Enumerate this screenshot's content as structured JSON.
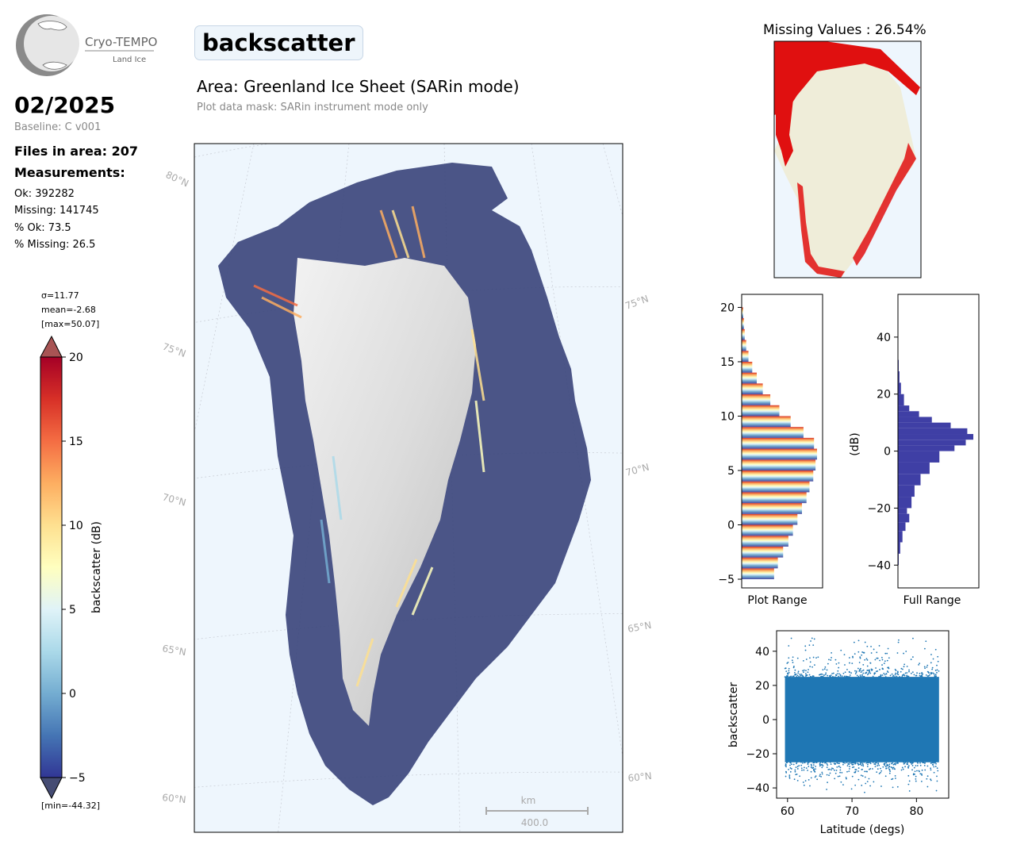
{
  "logo": {
    "line1": "Cryo-TEMPO",
    "line2": "Land Ice"
  },
  "summary": {
    "month": "02/2025",
    "baseline": "Baseline: C v001",
    "files": "Files in area: 207",
    "measurements_label": "Measurements:",
    "ok": "Ok: 392282",
    "missing": "Missing: 141745",
    "pct_ok": "% Ok: 73.5",
    "pct_missing": "% Missing: 26.5"
  },
  "header": {
    "title": "backscatter",
    "area": "Area: Greenland Ice Sheet (SARin mode)",
    "mask": "Plot data mask: SARin instrument mode only"
  },
  "colorbar": {
    "sigma": "σ=11.77",
    "mean": "mean=-2.68",
    "max": "[max=50.07]",
    "min": "[min=-44.32]",
    "label": "backscatter (dB)",
    "ticks": [
      "20",
      "15",
      "10",
      "5",
      "0",
      "−5"
    ]
  },
  "map": {
    "lat_labels_left": [
      "80°N",
      "75°N",
      "70°N",
      "65°N",
      "60°N"
    ],
    "lat_labels_right": [
      "75°N",
      "70°N",
      "65°N",
      "60°N"
    ],
    "scale_unit": "km",
    "scale_value": "400.0"
  },
  "missing_map": {
    "title": "Missing Values : 26.54%"
  },
  "colors": {
    "ocean": "#eef6fd",
    "land": "#efedd9",
    "missing": "#e01010",
    "hist_full": "#3f3fa5",
    "scatter": "#1f77b4",
    "axis_label_gray": "#aaaaaa"
  },
  "chart_data": [
    {
      "type": "bar",
      "title": "",
      "xlabel": "Plot Range",
      "ylabel": "",
      "orientation": "horizontal",
      "ylim": [
        -5.8,
        21.2
      ],
      "yticks": [
        "20",
        "15",
        "10",
        "5",
        "0",
        "−5"
      ],
      "bins": [
        -5,
        -4,
        -3,
        -2,
        -1,
        0,
        1,
        2,
        3,
        4,
        5,
        6,
        7,
        8,
        9,
        10,
        11,
        12,
        13,
        14,
        15,
        16,
        17,
        18,
        19,
        20
      ],
      "counts": [
        0.43,
        0.48,
        0.55,
        0.62,
        0.68,
        0.74,
        0.8,
        0.86,
        0.9,
        0.95,
        0.98,
        1.0,
        0.96,
        0.82,
        0.65,
        0.5,
        0.38,
        0.28,
        0.2,
        0.14,
        0.09,
        0.06,
        0.04,
        0.03,
        0.02,
        0.0
      ]
    },
    {
      "type": "bar",
      "title": "",
      "xlabel": "Full Range",
      "ylabel": "(dB)",
      "orientation": "horizontal",
      "ylim": [
        -48,
        55
      ],
      "yticks": [
        "40",
        "20",
        "0",
        "−20",
        "−40"
      ],
      "bins": [
        -44,
        -40,
        -36,
        -32,
        -28,
        -25,
        -22,
        -20,
        -16,
        -12,
        -8,
        -4,
        0,
        2,
        4,
        6,
        8,
        10,
        12,
        14,
        16,
        20,
        24,
        28,
        32
      ],
      "counts": [
        0.0,
        0.01,
        0.03,
        0.06,
        0.1,
        0.15,
        0.12,
        0.18,
        0.22,
        0.3,
        0.42,
        0.55,
        0.75,
        0.9,
        1.0,
        0.92,
        0.7,
        0.45,
        0.28,
        0.15,
        0.08,
        0.04,
        0.02,
        0.01,
        0.0
      ]
    },
    {
      "type": "scatter",
      "title": "",
      "xlabel": "Latitude (degs)",
      "ylabel": "backscatter",
      "xlim": [
        58.3,
        85
      ],
      "ylim": [
        -46,
        52
      ],
      "xticks": [
        "60",
        "70",
        "80"
      ],
      "yticks": [
        "40",
        "20",
        "0",
        "−20",
        "−40"
      ],
      "x_range": [
        59.6,
        83.5
      ],
      "y_typical": [
        -25,
        25
      ],
      "y_extreme": [
        -44.32,
        50.07
      ]
    }
  ]
}
